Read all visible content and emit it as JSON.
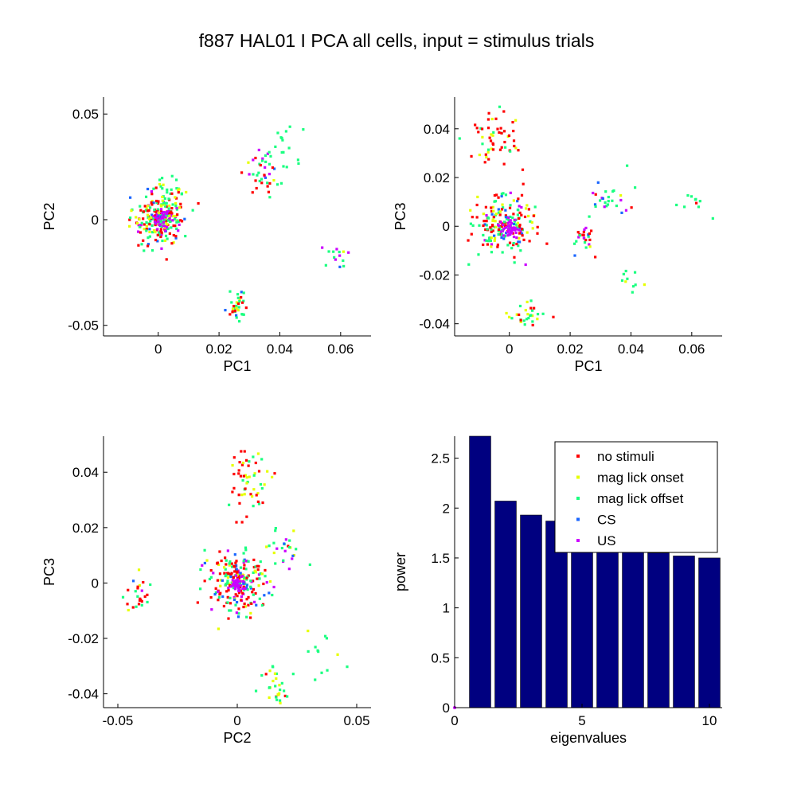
{
  "figure": {
    "title": "f887 HAL01 I PCA all cells, input = stimulus trials"
  },
  "legend": {
    "placement": "top-right of bar chart",
    "entries": [
      {
        "label": "no stimuli",
        "color": "#ff0000"
      },
      {
        "label": "mag lick  onset",
        "color": "#e6ff00"
      },
      {
        "label": "mag lick  offset",
        "color": "#1aff80"
      },
      {
        "label": "CS",
        "color": "#1a66ff"
      },
      {
        "label": "US",
        "color": "#cc00ff"
      }
    ]
  },
  "chart_data": [
    {
      "type": "scatter",
      "id": "pc1-pc2",
      "xlabel": "PC1",
      "ylabel": "PC2",
      "xlim": [
        -0.018,
        0.07
      ],
      "ylim": [
        -0.055,
        0.058
      ],
      "xticks": [
        0,
        0.02,
        0.04,
        0.06
      ],
      "xticklabels": [
        "0",
        "0.02",
        "0.04",
        "0.06"
      ],
      "yticks": [
        -0.05,
        0,
        0.05
      ],
      "yticklabels": [
        "-0.05",
        "0",
        "0.05"
      ],
      "grid": false,
      "clusters": [
        {
          "cx": 0,
          "cy": 0,
          "sx": 0.0045,
          "sy": 0.006,
          "n": 220,
          "mix": [
            0.34,
            0.14,
            0.34,
            0.1,
            0.08
          ]
        },
        {
          "cx": 0.0015,
          "cy": 0.0005,
          "sx": 0.0015,
          "sy": 0.002,
          "n": 40,
          "mix": [
            0,
            0,
            0.1,
            0.1,
            0.8
          ]
        },
        {
          "cx": 0.0045,
          "cy": 0.011,
          "sx": 0.003,
          "sy": 0.005,
          "n": 30,
          "mix": [
            0.2,
            0.4,
            0.4,
            0,
            0
          ]
        },
        {
          "cx": 0.034,
          "cy": 0.022,
          "sx": 0.0025,
          "sy": 0.005,
          "n": 35,
          "mix": [
            0.2,
            0.1,
            0.45,
            0.1,
            0.15
          ]
        },
        {
          "cx": 0.04,
          "cy": 0.034,
          "sx": 0.004,
          "sy": 0.006,
          "n": 20,
          "mix": [
            0,
            0.15,
            0.85,
            0,
            0
          ]
        },
        {
          "cx": 0.0255,
          "cy": -0.041,
          "sx": 0.002,
          "sy": 0.003,
          "n": 35,
          "mix": [
            0.3,
            0.15,
            0.4,
            0.1,
            0.05
          ]
        },
        {
          "cx": 0.06,
          "cy": -0.018,
          "sx": 0.004,
          "sy": 0.004,
          "n": 14,
          "mix": [
            0,
            0.1,
            0.6,
            0.1,
            0.2
          ]
        }
      ]
    },
    {
      "type": "scatter",
      "id": "pc1-pc3",
      "xlabel": "PC1",
      "ylabel": "PC3",
      "xlim": [
        -0.018,
        0.07
      ],
      "ylim": [
        -0.045,
        0.053
      ],
      "xticks": [
        0,
        0.02,
        0.04,
        0.06
      ],
      "xticklabels": [
        "0",
        "0.02",
        "0.04",
        "0.06"
      ],
      "yticks": [
        -0.04,
        -0.02,
        0,
        0.02,
        0.04
      ],
      "yticklabels": [
        "-0.04",
        "-0.02",
        "0",
        "0.02",
        "0.04"
      ],
      "grid": false,
      "clusters": [
        {
          "cx": -0.002,
          "cy": 0.001,
          "sx": 0.005,
          "sy": 0.006,
          "n": 200,
          "mix": [
            0.34,
            0.14,
            0.34,
            0.1,
            0.08
          ]
        },
        {
          "cx": 0,
          "cy": -0.001,
          "sx": 0.0015,
          "sy": 0.002,
          "n": 40,
          "mix": [
            0,
            0,
            0.1,
            0.1,
            0.8
          ]
        },
        {
          "cx": -0.005,
          "cy": 0.035,
          "sx": 0.004,
          "sy": 0.006,
          "n": 55,
          "mix": [
            0.55,
            0.25,
            0.2,
            0,
            0
          ]
        },
        {
          "cx": 0.006,
          "cy": -0.037,
          "sx": 0.003,
          "sy": 0.003,
          "n": 30,
          "mix": [
            0.15,
            0.4,
            0.45,
            0,
            0
          ]
        },
        {
          "cx": 0.024,
          "cy": -0.005,
          "sx": 0.002,
          "sy": 0.003,
          "n": 25,
          "mix": [
            0.5,
            0.1,
            0.3,
            0.05,
            0.05
          ]
        },
        {
          "cx": 0.033,
          "cy": 0.012,
          "sx": 0.003,
          "sy": 0.003,
          "n": 28,
          "mix": [
            0.1,
            0.15,
            0.45,
            0.1,
            0.2
          ]
        },
        {
          "cx": 0.04,
          "cy": -0.022,
          "sx": 0.002,
          "sy": 0.003,
          "n": 10,
          "mix": [
            0,
            0.2,
            0.8,
            0,
            0
          ]
        },
        {
          "cx": 0.06,
          "cy": 0.01,
          "sx": 0.003,
          "sy": 0.003,
          "n": 10,
          "mix": [
            0.2,
            0,
            0.6,
            0,
            0.2
          ]
        }
      ]
    },
    {
      "type": "scatter",
      "id": "pc2-pc3",
      "xlabel": "PC2",
      "ylabel": "PC3",
      "xlim": [
        -0.056,
        0.056
      ],
      "ylim": [
        -0.045,
        0.053
      ],
      "xticks": [
        -0.05,
        0,
        0.05
      ],
      "xticklabels": [
        "-0.05",
        "0",
        "0.05"
      ],
      "yticks": [
        -0.04,
        -0.02,
        0,
        0.02,
        0.04
      ],
      "yticklabels": [
        "-0.04",
        "-0.02",
        "0",
        "0.02",
        "0.04"
      ],
      "grid": false,
      "clusters": [
        {
          "cx": 0,
          "cy": 0,
          "sx": 0.006,
          "sy": 0.006,
          "n": 220,
          "mix": [
            0.34,
            0.14,
            0.34,
            0.1,
            0.08
          ]
        },
        {
          "cx": 0,
          "cy": 0,
          "sx": 0.0015,
          "sy": 0.002,
          "n": 40,
          "mix": [
            0,
            0,
            0.1,
            0.1,
            0.8
          ]
        },
        {
          "cx": 0.005,
          "cy": 0.036,
          "sx": 0.004,
          "sy": 0.006,
          "n": 55,
          "mix": [
            0.55,
            0.25,
            0.2,
            0,
            0
          ]
        },
        {
          "cx": 0.016,
          "cy": -0.037,
          "sx": 0.003,
          "sy": 0.003,
          "n": 30,
          "mix": [
            0.15,
            0.4,
            0.45,
            0,
            0
          ]
        },
        {
          "cx": -0.042,
          "cy": -0.004,
          "sx": 0.003,
          "sy": 0.003,
          "n": 25,
          "mix": [
            0.5,
            0.1,
            0.3,
            0.05,
            0.05
          ]
        },
        {
          "cx": 0.022,
          "cy": 0.013,
          "sx": 0.004,
          "sy": 0.004,
          "n": 25,
          "mix": [
            0.1,
            0.15,
            0.45,
            0.1,
            0.2
          ]
        },
        {
          "cx": 0.037,
          "cy": -0.025,
          "sx": 0.004,
          "sy": 0.006,
          "n": 12,
          "mix": [
            0,
            0.3,
            0.7,
            0,
            0
          ]
        }
      ]
    },
    {
      "type": "bar",
      "id": "eigenvalues",
      "xlabel": "eigenvalues",
      "ylabel": "power",
      "x": [
        1,
        2,
        3,
        4,
        5,
        6,
        7,
        8,
        9,
        10
      ],
      "values": [
        2.72,
        2.07,
        1.93,
        1.87,
        1.75,
        1.65,
        1.6,
        1.55,
        1.52,
        1.5
      ],
      "bar_color": "#000080",
      "xlim": [
        0,
        10.5
      ],
      "ylim": [
        0,
        2.72
      ],
      "xticks": [
        0,
        5,
        10
      ],
      "xticklabels": [
        "0",
        "5",
        "10"
      ],
      "yticks": [
        0,
        0.5,
        1,
        1.5,
        2,
        2.5
      ],
      "yticklabels": [
        "0",
        "0.5",
        "1",
        "1.5",
        "2",
        "2.5"
      ],
      "grid": false
    }
  ]
}
